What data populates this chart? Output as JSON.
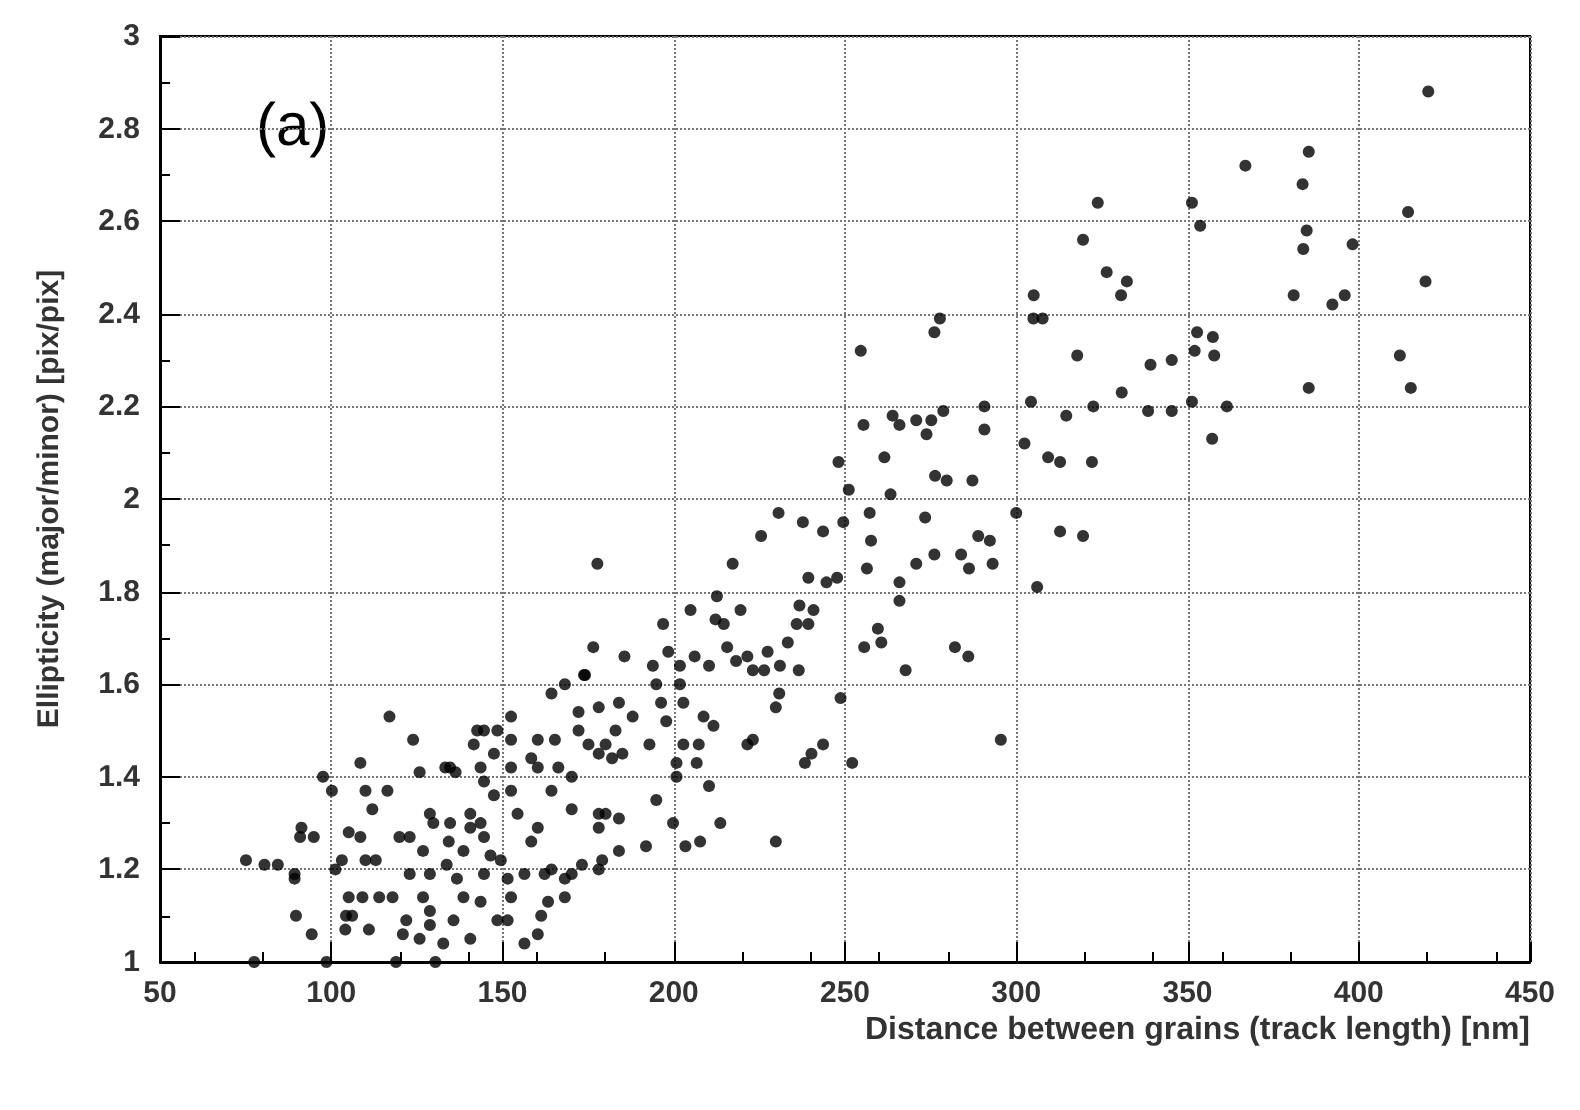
{
  "chart_data": {
    "type": "scatter",
    "xlabel": "Distance between grains (track length) [nm]",
    "ylabel": "Ellipticity (major/minor) [pix/pix]",
    "annotations": [
      "(a)"
    ],
    "xlim": [
      50,
      450
    ],
    "xticks": [
      50,
      100,
      150,
      200,
      250,
      300,
      350,
      400,
      450
    ],
    "ylim": [
      1,
      3
    ],
    "yticks": [
      1,
      1.2,
      1.4,
      1.6,
      1.8,
      2,
      2.2,
      2.4,
      2.6,
      2.8,
      3
    ],
    "grid": true,
    "marker": "circle",
    "color": "#000000",
    "x": [
      420.3,
      366.9,
      385.4,
      383.6,
      323.8,
      351.3,
      353.7,
      414.4,
      319.5,
      384.8,
      383.8,
      398.2,
      326.4,
      332.3,
      330.6,
      305.1,
      419.5,
      381,
      392.3,
      395.9,
      305,
      307.7,
      317.8,
      339.2,
      345.4,
      352.8,
      357.4,
      352.1,
      357.8,
      412,
      385.4,
      415.2,
      330.8,
      304.3,
      290.7,
      322.5,
      314.6,
      338.5,
      345.4,
      351.3,
      361.5,
      357.2,
      290.7,
      302.4,
      309.3,
      312.8,
      322.1,
      279.7,
      287.2,
      300,
      312.8,
      319.5,
      288.9,
      292.3,
      283.9,
      286.2,
      293.1,
      306.1,
      254.6,
      276.1,
      277.7,
      255.4,
      263.9,
      265.9,
      270.8,
      273.8,
      275.2,
      278.7,
      248.1,
      261.5,
      251.1,
      276.3,
      263.3,
      230.6,
      237.7,
      225.5,
      243.6,
      249.5,
      257.2,
      257.6,
      273.4,
      217.2,
      177.7,
      270.8,
      276.1,
      256.4,
      265.9,
      265.9,
      239.3,
      244.6,
      247.7,
      212.6,
      204.9,
      219.5,
      212.2,
      214.6,
      196.9,
      236.7,
      240.8,
      235.9,
      239.3,
      233.3,
      259.6,
      260.6,
      255.6,
      267.7,
      282.1,
      286,
      215.6,
      221.5,
      227.4,
      218.2,
      223.1,
      226.4,
      231,
      236.5,
      210.3,
      185.6,
      176.5,
      173.8,
      198.4,
      193.9,
      201.8,
      206.1,
      194.9,
      201.8,
      230.8,
      229.8,
      248.7,
      295.5,
      252.1,
      243.6,
      240.2,
      238.3,
      223.1,
      221.5,
      210.3,
      213.6,
      229.8,
      203.4,
      207.7,
      191.9,
      199.8,
      194.9,
      200.8,
      200.8,
      206.7,
      207.3,
      208.7,
      211.6,
      197.8,
      192.9,
      202.8,
      202.8,
      196.3,
      128.8,
      129.8,
      134.7,
      140.6,
      140.6,
      144.6,
      138.6,
      146.5,
      144.6,
      149.5,
      151.5,
      152.5,
      148.5,
      151.5,
      156.4,
      160.3,
      161.3,
      163.3,
      168.2,
      168.2,
      162.3,
      156.4,
      158.4,
      160.3,
      154.4,
      152.5,
      152.5,
      144.6,
      148.5,
      152.5,
      164.3,
      168.2,
      174.1,
      172.2,
      178.1,
      184,
      188,
      172.2,
      175.1,
      180.1,
      183,
      178.1,
      182,
      185,
      170.2,
      166.3,
      164.3,
      160.3,
      158.4,
      160.3,
      165.3,
      170.2,
      178.1,
      180.1,
      184,
      178.1,
      184,
      179.1,
      178.1,
      173.2,
      170.2,
      164.3,
      152.5,
      144.6,
      143.6,
      143.6,
      147.5,
      134.7,
      141.6,
      142.6,
      147.5,
      117,
      123.9,
      108.5,
      125.8,
      133.3,
      136.3,
      97.6,
      100.2,
      110,
      116.4,
      112,
      91.3,
      90.9,
      94.9,
      75.1,
      80.5,
      84.4,
      89.3,
      89.3,
      89.7,
      94.3,
      77.5,
      98.6,
      118.9,
      130.4,
      101.2,
      105.1,
      108.5,
      110,
      113,
      103.1,
      105.1,
      109.1,
      114,
      117.9,
      104.3,
      106.1,
      104.1,
      111,
      119.9,
      122.9,
      126.8,
      122.9,
      128.8,
      133.7,
      134.3,
      136.7,
      126.8,
      128.8,
      121.9,
      120.9,
      125.8,
      128.8,
      132.7,
      135.7,
      140.6,
      143.6,
      138.6
    ],
    "values": [
      2.88,
      2.72,
      2.75,
      2.68,
      2.64,
      2.64,
      2.59,
      2.62,
      2.56,
      2.58,
      2.54,
      2.55,
      2.49,
      2.47,
      2.44,
      2.44,
      2.47,
      2.44,
      2.42,
      2.44,
      2.39,
      2.39,
      2.31,
      2.29,
      2.3,
      2.36,
      2.35,
      2.32,
      2.31,
      2.31,
      2.24,
      2.24,
      2.23,
      2.21,
      2.2,
      2.2,
      2.18,
      2.19,
      2.19,
      2.21,
      2.2,
      2.13,
      2.15,
      2.12,
      2.09,
      2.08,
      2.08,
      2.04,
      2.04,
      1.97,
      1.93,
      1.92,
      1.92,
      1.91,
      1.88,
      1.85,
      1.86,
      1.81,
      2.32,
      2.36,
      2.39,
      2.16,
      2.18,
      2.16,
      2.17,
      2.14,
      2.17,
      2.19,
      2.08,
      2.09,
      2.02,
      2.05,
      2.01,
      1.97,
      1.95,
      1.92,
      1.93,
      1.95,
      1.97,
      1.91,
      1.96,
      1.86,
      1.86,
      1.86,
      1.88,
      1.85,
      1.82,
      1.78,
      1.83,
      1.82,
      1.83,
      1.79,
      1.76,
      1.76,
      1.74,
      1.73,
      1.73,
      1.77,
      1.76,
      1.73,
      1.73,
      1.69,
      1.72,
      1.69,
      1.68,
      1.63,
      1.68,
      1.66,
      1.68,
      1.66,
      1.67,
      1.65,
      1.63,
      1.63,
      1.64,
      1.63,
      1.64,
      1.66,
      1.68,
      1.62,
      1.67,
      1.64,
      1.64,
      1.66,
      1.6,
      1.6,
      1.58,
      1.55,
      1.57,
      1.48,
      1.43,
      1.47,
      1.45,
      1.43,
      1.48,
      1.47,
      1.38,
      1.3,
      1.26,
      1.25,
      1.26,
      1.25,
      1.3,
      1.35,
      1.4,
      1.43,
      1.43,
      1.47,
      1.53,
      1.51,
      1.52,
      1.47,
      1.47,
      1.56,
      1.56,
      1.32,
      1.3,
      1.3,
      1.29,
      1.32,
      1.27,
      1.24,
      1.23,
      1.19,
      1.22,
      1.18,
      1.14,
      1.09,
      1.09,
      1.04,
      1.06,
      1.1,
      1.13,
      1.14,
      1.18,
      1.19,
      1.19,
      1.26,
      1.29,
      1.32,
      1.37,
      1.48,
      1.5,
      1.5,
      1.53,
      1.58,
      1.6,
      1.62,
      1.54,
      1.55,
      1.56,
      1.53,
      1.5,
      1.47,
      1.47,
      1.5,
      1.45,
      1.44,
      1.45,
      1.4,
      1.42,
      1.37,
      1.42,
      1.44,
      1.48,
      1.48,
      1.33,
      1.32,
      1.32,
      1.31,
      1.29,
      1.24,
      1.22,
      1.2,
      1.21,
      1.19,
      1.2,
      1.42,
      1.39,
      1.42,
      1.3,
      1.36,
      1.42,
      1.47,
      1.5,
      1.45,
      1.53,
      1.48,
      1.43,
      1.41,
      1.42,
      1.41,
      1.4,
      1.37,
      1.37,
      1.37,
      1.33,
      1.29,
      1.27,
      1.27,
      1.22,
      1.21,
      1.21,
      1.19,
      1.18,
      1.1,
      1.06,
      1,
      1,
      1,
      1,
      1.2,
      1.28,
      1.27,
      1.22,
      1.22,
      1.22,
      1.14,
      1.14,
      1.14,
      1.14,
      1.1,
      1.1,
      1.07,
      1.07,
      1.27,
      1.27,
      1.24,
      1.19,
      1.19,
      1.21,
      1.26,
      1.18,
      1.14,
      1.11,
      1.09,
      1.06,
      1.05,
      1.08,
      1.04,
      1.09,
      1.05,
      1.13,
      1.14
    ]
  }
}
